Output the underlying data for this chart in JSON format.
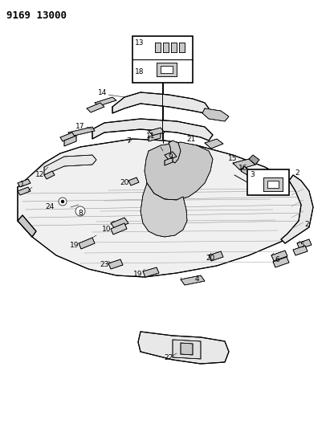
{
  "title": "9169 13000",
  "bg_color": "#ffffff",
  "fg_color": "#000000",
  "fig_width": 4.11,
  "fig_height": 5.33,
  "dpi": 100,
  "lw_main": 0.8,
  "lw_detail": 0.5,
  "lw_thin": 0.35,
  "gray_main": "#303030",
  "gray_fill": "#e8e8e8",
  "gray_mid": "#c8c8c8",
  "gray_dark": "#a0a0a0"
}
